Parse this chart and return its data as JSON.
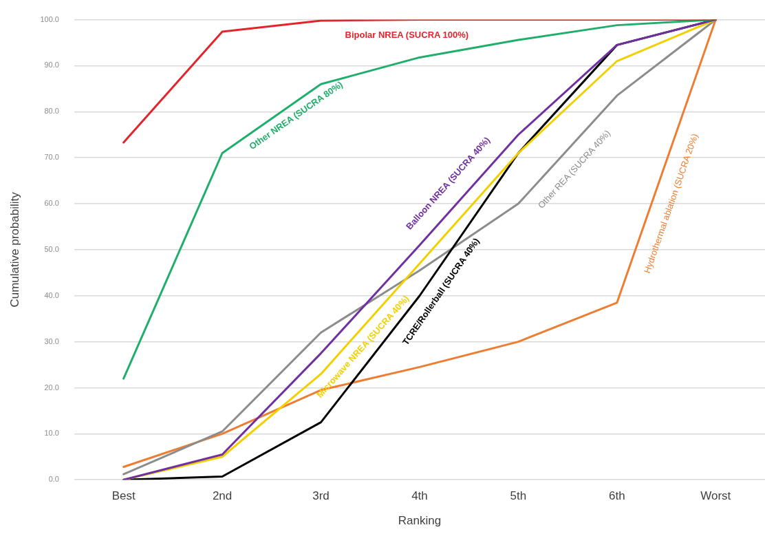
{
  "chart_data": {
    "type": "line",
    "xlabel": "Ranking",
    "ylabel": "Cumulative probability",
    "categories": [
      "Best",
      "2nd",
      "3rd",
      "4th",
      "5th",
      "6th",
      "Worst"
    ],
    "series": [
      {
        "name": "Bipolar NREA (SUCRA 100%)",
        "color": "#e3242b",
        "values": [
          73.3,
          97.4,
          99.8,
          100,
          100,
          100,
          100
        ]
      },
      {
        "name": "Other NREA (SUCRA 80%)",
        "color": "#1fae6b",
        "values": [
          22,
          71,
          86,
          91.8,
          95.6,
          98.8,
          100
        ]
      },
      {
        "name": "Balloon NREA (SUCRA 40%)",
        "color": "#7030a0",
        "values": [
          0,
          5.5,
          27.5,
          51,
          75,
          94.5,
          100
        ]
      },
      {
        "name": "Microwave NREA (SUCRA 40%)",
        "color": "#f2d000",
        "values": [
          0,
          5,
          23,
          47,
          71,
          91,
          100
        ]
      },
      {
        "name": "TCRE/Rollerball (SUCRA 40%)",
        "color": "#000000",
        "values": [
          0,
          0.7,
          12.5,
          40,
          71,
          94.5,
          100
        ]
      },
      {
        "name": "Other REA (SUCRA 40%)",
        "color": "#8c8c8c",
        "values": [
          1.2,
          10.5,
          32,
          45.5,
          60,
          83.5,
          100
        ]
      },
      {
        "name": "Hydrothermal ablation (SUCRA 20%)",
        "color": "#ed7d31",
        "values": [
          2.8,
          10,
          19.5,
          24.5,
          30,
          38.5,
          100
        ]
      }
    ],
    "ylim": [
      0,
      100
    ],
    "yticks": [
      {
        "value": 0,
        "label": "0.0"
      },
      {
        "value": 10,
        "label": "10.0"
      },
      {
        "value": 20,
        "label": "20.0"
      },
      {
        "value": 30,
        "label": "30.0"
      },
      {
        "value": 40,
        "label": "40.0"
      },
      {
        "value": 50,
        "label": "50.0"
      },
      {
        "value": 60,
        "label": "60.0"
      },
      {
        "value": 70,
        "label": "70.0"
      },
      {
        "value": 80,
        "label": "80.0"
      },
      {
        "value": 90,
        "label": "90.0"
      },
      {
        "value": 100,
        "label": "100.0"
      }
    ],
    "grid": "y",
    "legend": false,
    "marker": "none",
    "line_style": "solid"
  }
}
